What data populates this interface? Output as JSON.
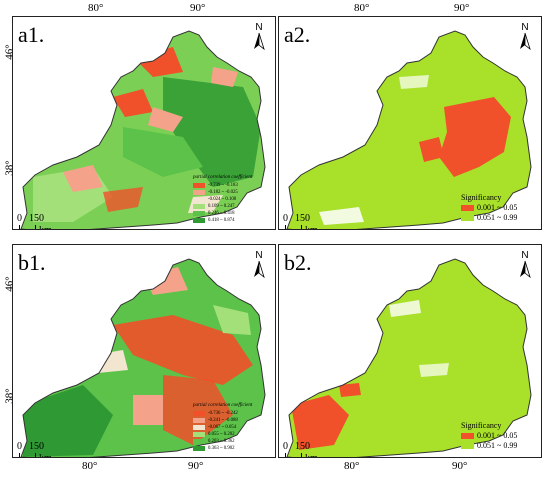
{
  "axes": {
    "lon_top": [
      "80°",
      "90°",
      "80°",
      "90°"
    ],
    "lon_bottom": [
      "80°",
      "90°",
      "80°",
      "90°"
    ],
    "lat": [
      "46°",
      "38°",
      "46°",
      "38°"
    ]
  },
  "panels": [
    {
      "label": "a1.",
      "north": "N",
      "scale": {
        "zero": "0",
        "dist": "150",
        "unit": "km"
      },
      "legend": {
        "title": "partial correlation coefficient",
        "items": [
          {
            "range": "-0.739 ~ -0.183",
            "color": "#f0502a"
          },
          {
            "range": "-0.182 ~ -0.025",
            "color": "#f4a28a"
          },
          {
            "range": "-0.024 ~ 0.108",
            "color": "#f3e6d0"
          },
          {
            "range": "0.109 ~ 0.247",
            "color": "#a3e07a"
          },
          {
            "range": "0.246 ~ 0.418",
            "color": "#5cc24a"
          },
          {
            "range": "0.418 ~ 0.874",
            "color": "#2f9a33"
          }
        ]
      }
    },
    {
      "label": "a2.",
      "north": "N",
      "scale": {
        "zero": "0",
        "dist": "150",
        "unit": "km"
      },
      "legend": {
        "title": "Significancy",
        "items": [
          {
            "range": "0.001 ~ 0.05",
            "color": "#f0502a"
          },
          {
            "range": "0.051 ~ 0.99",
            "color": "#a8e02a"
          }
        ]
      }
    },
    {
      "label": "b1.",
      "north": "N",
      "scale": {
        "zero": "0",
        "dist": "150",
        "unit": "km"
      },
      "legend": {
        "title": "partial correlation coefficient",
        "items": [
          {
            "range": "-0.736 ~ -0.242",
            "color": "#f0502a"
          },
          {
            "range": "-0.241 ~ -0.088",
            "color": "#f4a28a"
          },
          {
            "range": "-0.087 ~ 0.054",
            "color": "#f3e6d0"
          },
          {
            "range": "0.055 ~ 0.202",
            "color": "#a3e07a"
          },
          {
            "range": "0.203 ~ 0.362",
            "color": "#5cc24a"
          },
          {
            "range": "0.363 ~ 0.902",
            "color": "#2f9a33"
          }
        ]
      }
    },
    {
      "label": "b2.",
      "north": "N",
      "scale": {
        "zero": "0",
        "dist": "150",
        "unit": "km"
      },
      "legend": {
        "title": "Significancy",
        "items": [
          {
            "range": "0.001 ~ 0.05",
            "color": "#f0502a"
          },
          {
            "range": "0.051 ~ 0.99",
            "color": "#a8e02a"
          }
        ]
      }
    }
  ]
}
